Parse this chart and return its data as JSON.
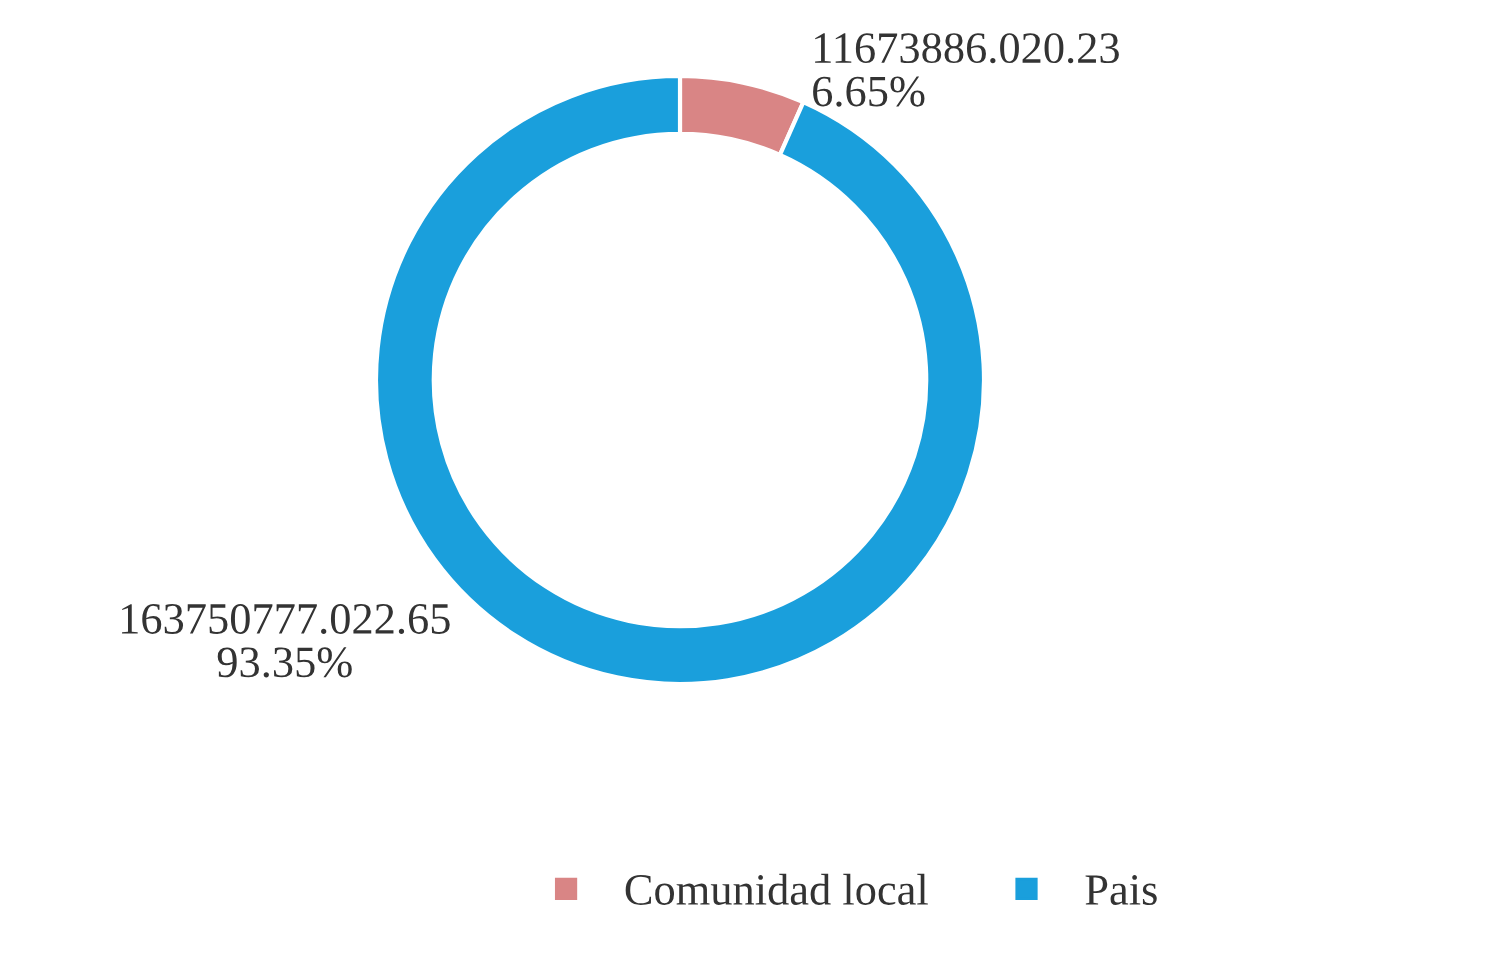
{
  "chart_data": {
    "type": "donut",
    "categories": [
      "Comunidad local",
      "Pais"
    ],
    "values": [
      6.65,
      93.35
    ],
    "colors": [
      "#d98585",
      "#1a9fdc"
    ],
    "value_labels": [
      "11673886.020.23\n6.65%",
      "163750777.022.65\n93.35%"
    ],
    "legend": "bottom"
  }
}
